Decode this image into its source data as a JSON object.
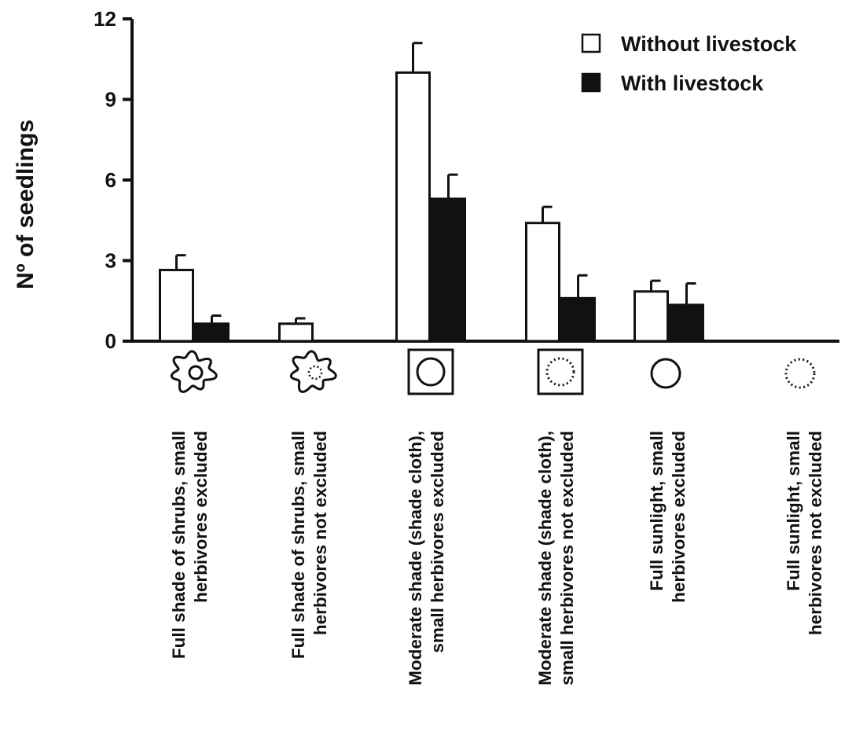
{
  "chart_data": {
    "type": "bar",
    "ylabel": "Nº of seedlings",
    "ylim": [
      0,
      12
    ],
    "yticks": [
      "0",
      "3",
      "6",
      "9",
      "12"
    ],
    "legend": {
      "placement": "top-right"
    },
    "categories": [
      [
        "Full shade of shrubs, small",
        "herbivores excluded"
      ],
      [
        "Full shade of shrubs, small",
        "herbivores not excluded"
      ],
      [
        "Moderate shade (shade cloth),",
        "small herbivores excluded"
      ],
      [
        "Moderate shade (shade cloth),",
        "small herbivores not excluded"
      ],
      [
        "Full sunlight, small",
        "herbivores excluded"
      ],
      [
        "Full sunlight, small",
        "herbivores not excluded"
      ]
    ],
    "category_icons": [
      "shrub-solid-circle-icon",
      "shrub-dotted-circle-icon",
      "shadecloth-solid-circle-icon",
      "shadecloth-dotted-circle-icon",
      "solid-circle-icon",
      "dotted-circle-icon"
    ],
    "series": [
      {
        "name": "Without livestock",
        "color": "#ffffff",
        "values": [
          2.65,
          0.65,
          10.0,
          4.4,
          1.85,
          0.0
        ],
        "errors": [
          0.55,
          0.2,
          1.1,
          0.6,
          0.4,
          0.0
        ]
      },
      {
        "name": "With livestock",
        "color": "#111111",
        "values": [
          0.65,
          0.0,
          5.3,
          1.6,
          1.35,
          0.0
        ],
        "errors": [
          0.3,
          0.0,
          0.9,
          0.85,
          0.8,
          0.0
        ]
      }
    ]
  }
}
